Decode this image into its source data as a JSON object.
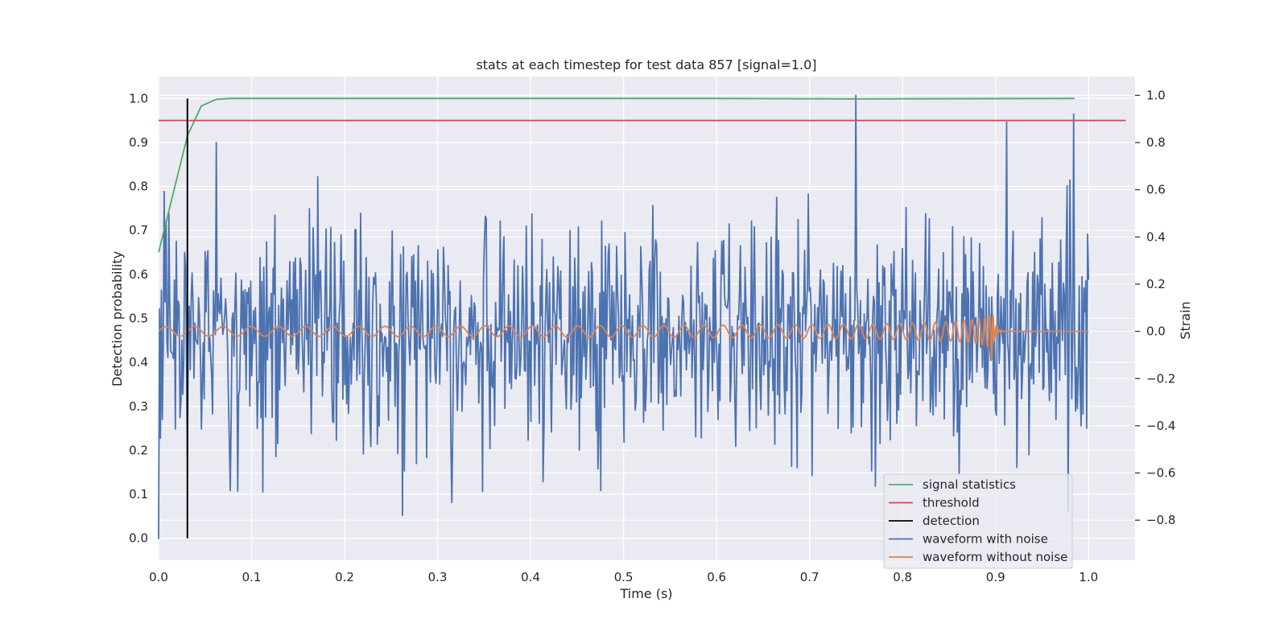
{
  "chart_data": {
    "type": "line",
    "title": "stats at each timestep for test data 857 [signal=1.0]",
    "xlabel": "Time (s)",
    "ylabel_left": "Detection probability",
    "ylabel_right": "Strain",
    "xlim": [
      0.0,
      1.05
    ],
    "ylim_left": [
      -0.05,
      1.05
    ],
    "ylim_right": [
      -0.97,
      1.08
    ],
    "xticks": [
      0.0,
      0.1,
      0.2,
      0.3,
      0.4,
      0.5,
      0.6,
      0.7,
      0.8,
      0.9,
      1.0
    ],
    "xtick_labels": [
      "0.0",
      "0.1",
      "0.2",
      "0.3",
      "0.4",
      "0.5",
      "0.6",
      "0.7",
      "0.8",
      "0.9",
      "1.0"
    ],
    "yticks_left": [
      0.0,
      0.1,
      0.2,
      0.3,
      0.4,
      0.5,
      0.6,
      0.7,
      0.8,
      0.9,
      1.0
    ],
    "ytick_labels_left": [
      "0.0",
      "0.1",
      "0.2",
      "0.3",
      "0.4",
      "0.5",
      "0.6",
      "0.7",
      "0.8",
      "0.9",
      "1.0"
    ],
    "yticks_right": [
      -0.8,
      -0.6,
      -0.4,
      -0.2,
      0.0,
      0.2,
      0.4,
      0.6,
      0.8,
      1.0
    ],
    "ytick_labels_right": [
      "−0.8",
      "−0.6",
      "−0.4",
      "−0.2",
      "0.0",
      "0.2",
      "0.4",
      "0.6",
      "0.8",
      "1.0"
    ],
    "grid": true,
    "legend_position": "lower-right",
    "series": [
      {
        "name": "signal statistics",
        "axis": "left",
        "color": "#55a868",
        "x": [
          0.0,
          0.031,
          0.046,
          0.062,
          0.077,
          0.2,
          0.4,
          0.6,
          0.75,
          0.985
        ],
        "y": [
          0.65,
          0.915,
          0.983,
          0.998,
          1.0,
          1.0,
          1.0,
          1.0,
          0.999,
          1.0
        ]
      },
      {
        "name": "threshold",
        "axis": "left",
        "color": "#c44e52",
        "x": [
          0.0,
          1.04
        ],
        "y": [
          0.95,
          0.95
        ]
      },
      {
        "name": "detection",
        "axis": "left",
        "color": "#000000",
        "x": [
          0.031,
          0.031
        ],
        "y": [
          0.0,
          1.0
        ]
      },
      {
        "name": "waveform with noise",
        "axis": "right",
        "color": "#4c72b0",
        "description_points": 1000,
        "x_range": [
          0.0,
          1.0
        ],
        "amplitude": 0.23,
        "spikes": [
          {
            "x": 0.0,
            "y": -0.88
          },
          {
            "x": 0.062,
            "y": 0.8
          },
          {
            "x": 0.112,
            "y": -0.68
          },
          {
            "x": 0.262,
            "y": -0.78
          },
          {
            "x": 0.75,
            "y": 1.0
          },
          {
            "x": 0.984,
            "y": 0.92
          },
          {
            "x": 0.978,
            "y": -0.76
          }
        ]
      },
      {
        "name": "waveform without noise",
        "axis": "right",
        "color": "#dd8452",
        "x_range": [
          0.0,
          1.0
        ],
        "amplitude_start": 0.02,
        "amplitude_peak": 0.15,
        "merger_time": 0.895,
        "ringdown_end": 0.91
      }
    ]
  }
}
